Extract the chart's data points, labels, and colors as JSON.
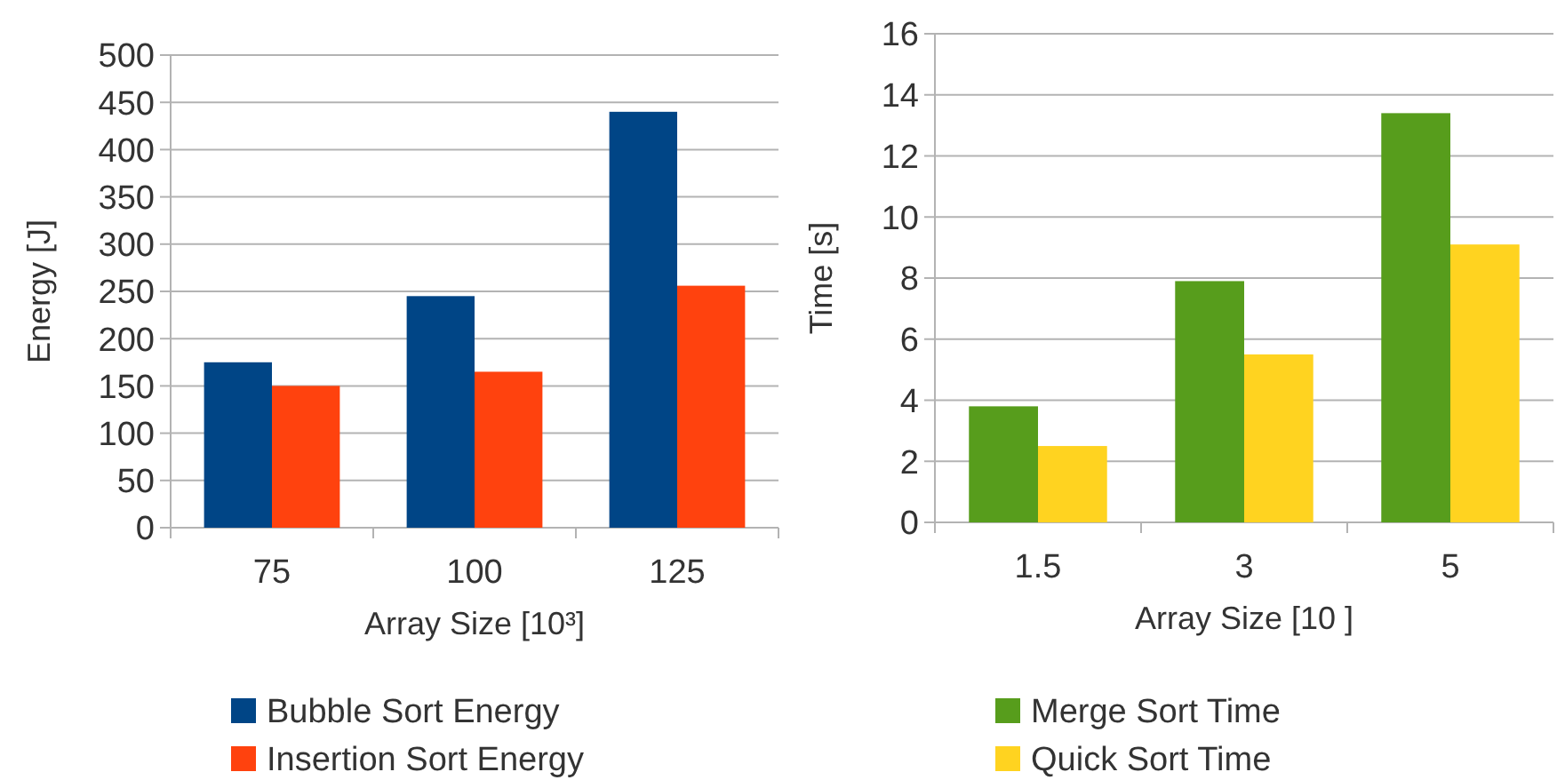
{
  "chart_data": [
    {
      "type": "bar",
      "xlabel": "Array Size [10³]",
      "ylabel": "Energy [J]",
      "categories": [
        "75",
        "100",
        "125"
      ],
      "series": [
        {
          "name": "Bubble Sort Energy",
          "color": "#004586",
          "values": [
            175,
            245,
            440
          ]
        },
        {
          "name": "Insertion Sort Energy",
          "color": "#ff420e",
          "values": [
            150,
            165,
            256
          ]
        }
      ],
      "ylim": [
        0,
        500
      ],
      "yticks": [
        0,
        50,
        100,
        150,
        200,
        250,
        300,
        350,
        400,
        450,
        500
      ],
      "grid": "y",
      "legend": "bottom"
    },
    {
      "type": "bar",
      "xlabel": "Array Size [10 ]",
      "ylabel": "Time [s]",
      "categories": [
        "1.5",
        "3",
        "5"
      ],
      "series": [
        {
          "name": "Merge Sort Time",
          "color": "#579d1c",
          "values": [
            3.8,
            7.9,
            13.4
          ]
        },
        {
          "name": "Quick Sort Time",
          "color": "#ffd320",
          "values": [
            2.5,
            5.5,
            9.1
          ]
        }
      ],
      "ylim": [
        0,
        16
      ],
      "yticks": [
        0,
        2,
        4,
        6,
        8,
        10,
        12,
        14,
        16
      ],
      "grid": "y",
      "legend": "bottom"
    }
  ]
}
